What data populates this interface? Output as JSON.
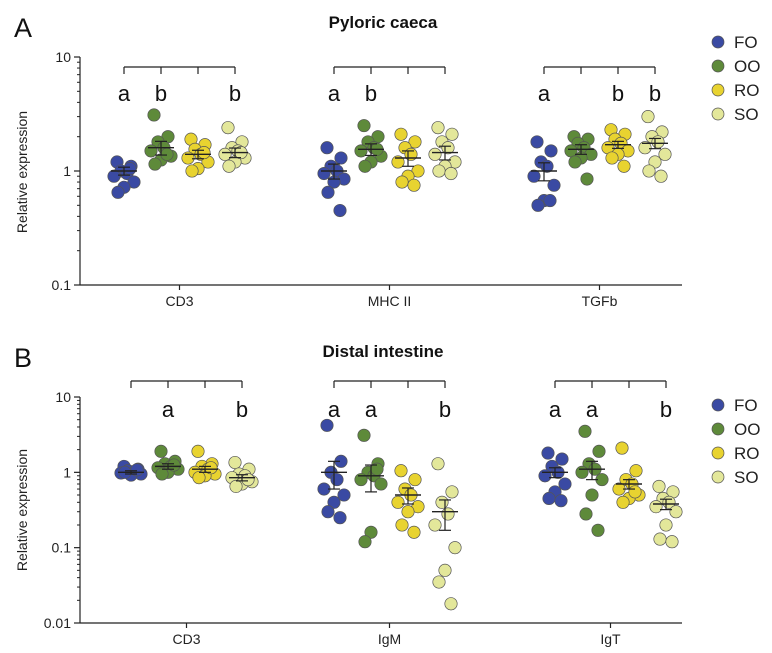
{
  "figure": {
    "panels": [
      {
        "letter": "A",
        "title": "Pyloric caeca",
        "ylabel": "Relative expression"
      },
      {
        "letter": "B",
        "title": "Distal intestine",
        "ylabel": "Relative expression"
      }
    ]
  },
  "legend": [
    {
      "label": "FO",
      "color": "#3a4aa3"
    },
    {
      "label": "OO",
      "color": "#5e8a3a"
    },
    {
      "label": "RO",
      "color": "#e8d330"
    },
    {
      "label": "SO",
      "color": "#e3e79a"
    }
  ],
  "chart_data": [
    {
      "type": "scatter",
      "title": "Pyloric caeca",
      "ylabel": "Relative expression",
      "yscale": "log",
      "ylim": [
        0.1,
        10
      ],
      "yticks": [
        "0.1",
        "1",
        "10"
      ],
      "categories": [
        "CD3",
        "MHC II",
        "TGFb"
      ],
      "series_names": [
        "FO",
        "OO",
        "RO",
        "SO"
      ],
      "groups": [
        {
          "category": "CD3",
          "letters": [
            "a",
            "b",
            "",
            "b"
          ],
          "series": [
            {
              "name": "FO",
              "mean": 1.0,
              "sem": 0.08,
              "values": [
                1.2,
                1.1,
                1.0,
                0.95,
                0.9,
                0.8,
                0.72,
                0.65,
                1.05
              ]
            },
            {
              "name": "OO",
              "mean": 1.6,
              "sem": 0.22,
              "values": [
                3.1,
                2.0,
                1.8,
                1.6,
                1.5,
                1.35,
                1.25,
                1.15,
                1.4
              ]
            },
            {
              "name": "RO",
              "mean": 1.4,
              "sem": 0.12,
              "values": [
                1.9,
                1.7,
                1.55,
                1.4,
                1.3,
                1.2,
                1.05,
                1.0,
                1.45
              ]
            },
            {
              "name": "SO",
              "mean": 1.45,
              "sem": 0.14,
              "values": [
                2.4,
                1.8,
                1.6,
                1.5,
                1.4,
                1.3,
                1.2,
                1.1,
                1.45
              ]
            }
          ]
        },
        {
          "category": "MHC II",
          "letters": [
            "a",
            "b",
            "",
            ""
          ],
          "series": [
            {
              "name": "FO",
              "mean": 1.0,
              "sem": 0.15,
              "values": [
                1.6,
                1.3,
                1.1,
                1.0,
                0.95,
                0.85,
                0.8,
                0.65,
                0.45
              ]
            },
            {
              "name": "OO",
              "mean": 1.55,
              "sem": 0.18,
              "values": [
                2.5,
                2.0,
                1.8,
                1.6,
                1.5,
                1.35,
                1.2,
                1.1,
                1.55
              ]
            },
            {
              "name": "RO",
              "mean": 1.3,
              "sem": 0.2,
              "values": [
                2.1,
                1.8,
                1.6,
                1.4,
                1.2,
                1.0,
                0.9,
                0.8,
                0.75
              ]
            },
            {
              "name": "SO",
              "mean": 1.45,
              "sem": 0.2,
              "values": [
                2.4,
                2.1,
                1.8,
                1.6,
                1.4,
                1.2,
                1.1,
                1.0,
                0.95
              ]
            }
          ]
        },
        {
          "category": "TGFb",
          "letters": [
            "a",
            "",
            "b",
            "b"
          ],
          "series": [
            {
              "name": "FO",
              "mean": 1.0,
              "sem": 0.18,
              "values": [
                1.8,
                1.5,
                1.2,
                1.1,
                0.9,
                0.75,
                0.55,
                0.5,
                0.55
              ]
            },
            {
              "name": "OO",
              "mean": 1.55,
              "sem": 0.15,
              "values": [
                2.0,
                1.9,
                1.75,
                1.6,
                1.5,
                1.4,
                1.3,
                1.2,
                0.85
              ]
            },
            {
              "name": "RO",
              "mean": 1.7,
              "sem": 0.12,
              "values": [
                2.3,
                2.1,
                1.9,
                1.75,
                1.6,
                1.5,
                1.4,
                1.3,
                1.1
              ]
            },
            {
              "name": "SO",
              "mean": 1.75,
              "sem": 0.18,
              "values": [
                3.0,
                2.2,
                2.0,
                1.8,
                1.6,
                1.4,
                1.2,
                1.0,
                0.9
              ]
            }
          ]
        }
      ]
    },
    {
      "type": "scatter",
      "title": "Distal intestine",
      "ylabel": "Relative expression",
      "yscale": "log",
      "ylim": [
        0.01,
        10
      ],
      "yticks": [
        "0.01",
        "0.1",
        "1",
        "10"
      ],
      "categories": [
        "CD3",
        "IgM",
        "IgT"
      ],
      "series_names": [
        "FO",
        "OO",
        "RO",
        "SO"
      ],
      "groups": [
        {
          "category": "CD3",
          "letters": [
            "",
            "a",
            "",
            "b"
          ],
          "series": [
            {
              "name": "FO",
              "mean": 1.0,
              "sem": 0.05,
              "values": [
                1.2,
                1.1,
                1.05,
                1.0,
                0.98,
                0.95,
                0.92,
                1.0,
                1.08
              ]
            },
            {
              "name": "OO",
              "mean": 1.2,
              "sem": 0.1,
              "values": [
                1.9,
                1.4,
                1.3,
                1.2,
                1.15,
                1.1,
                1.0,
                0.95,
                1.25
              ]
            },
            {
              "name": "RO",
              "mean": 1.1,
              "sem": 0.1,
              "values": [
                1.9,
                1.3,
                1.2,
                1.1,
                1.0,
                0.95,
                0.9,
                0.85,
                1.15
              ]
            },
            {
              "name": "SO",
              "mean": 0.85,
              "sem": 0.08,
              "values": [
                1.35,
                1.1,
                0.95,
                0.9,
                0.85,
                0.75,
                0.7,
                0.65,
                0.8
              ]
            }
          ]
        },
        {
          "category": "IgM",
          "letters": [
            "a",
            "a",
            "",
            "b"
          ],
          "series": [
            {
              "name": "FO",
              "mean": 1.0,
              "sem": 0.4,
              "values": [
                4.2,
                1.4,
                1.0,
                0.8,
                0.6,
                0.5,
                0.4,
                0.3,
                0.25
              ]
            },
            {
              "name": "OO",
              "mean": 0.9,
              "sem": 0.35,
              "values": [
                3.1,
                1.3,
                1.0,
                0.9,
                0.8,
                0.7,
                0.16,
                0.12,
                1.1
              ]
            },
            {
              "name": "RO",
              "mean": 0.5,
              "sem": 0.12,
              "values": [
                1.05,
                0.8,
                0.6,
                0.5,
                0.4,
                0.35,
                0.3,
                0.2,
                0.16
              ]
            },
            {
              "name": "SO",
              "mean": 0.3,
              "sem": 0.13,
              "values": [
                1.3,
                0.55,
                0.4,
                0.28,
                0.2,
                0.1,
                0.05,
                0.035,
                0.018
              ]
            }
          ]
        },
        {
          "category": "IgT",
          "letters": [
            "a",
            "a",
            "",
            "b"
          ],
          "series": [
            {
              "name": "FO",
              "mean": 1.0,
              "sem": 0.15,
              "values": [
                1.8,
                1.5,
                1.2,
                1.0,
                0.9,
                0.7,
                0.55,
                0.45,
                0.42
              ]
            },
            {
              "name": "OO",
              "mean": 1.1,
              "sem": 0.3,
              "values": [
                3.5,
                1.9,
                1.3,
                1.1,
                1.0,
                0.8,
                0.5,
                0.28,
                0.17
              ]
            },
            {
              "name": "RO",
              "mean": 0.7,
              "sem": 0.1,
              "values": [
                2.1,
                1.05,
                0.8,
                0.7,
                0.6,
                0.5,
                0.45,
                0.4,
                0.55
              ]
            },
            {
              "name": "SO",
              "mean": 0.38,
              "sem": 0.06,
              "values": [
                0.65,
                0.55,
                0.45,
                0.4,
                0.35,
                0.3,
                0.2,
                0.13,
                0.12
              ]
            }
          ]
        }
      ]
    }
  ]
}
